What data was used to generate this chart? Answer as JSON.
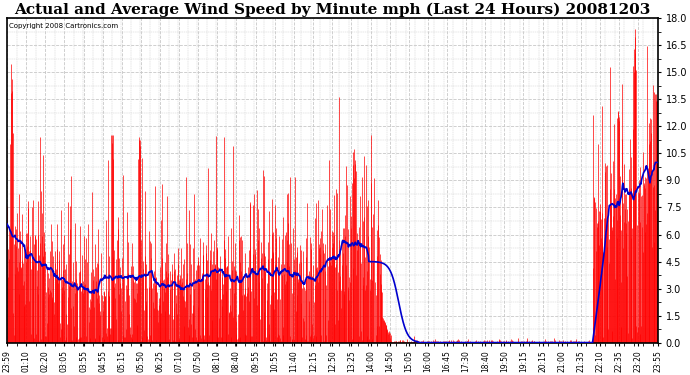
{
  "title": "Actual and Average Wind Speed by Minute mph (Last 24 Hours) 20081203",
  "copyright": "Copyright 2008 Cartronics.com",
  "title_fontsize": 11,
  "yticks": [
    0.0,
    1.5,
    3.0,
    4.5,
    6.0,
    7.5,
    9.0,
    10.5,
    12.0,
    13.5,
    15.0,
    16.5,
    18.0
  ],
  "ylim": [
    0.0,
    18.0
  ],
  "bar_color": "#ff0000",
  "line_color": "#0000cd",
  "background_color": "#ffffff",
  "grid_color": "#c8c8c8",
  "num_points": 1440,
  "xtick_labels": [
    "23:59",
    "01:10",
    "02:20",
    "03:05",
    "03:55",
    "04:55",
    "05:15",
    "05:50",
    "06:25",
    "07:10",
    "07:50",
    "08:10",
    "08:40",
    "09:55",
    "10:55",
    "11:40",
    "12:15",
    "12:50",
    "13:25",
    "14:00",
    "14:50",
    "15:05",
    "16:00",
    "16:45",
    "17:30",
    "18:40",
    "19:50",
    "19:15",
    "20:15",
    "21:00",
    "21:35",
    "22:10",
    "22:35",
    "23:20",
    "23:55"
  ]
}
